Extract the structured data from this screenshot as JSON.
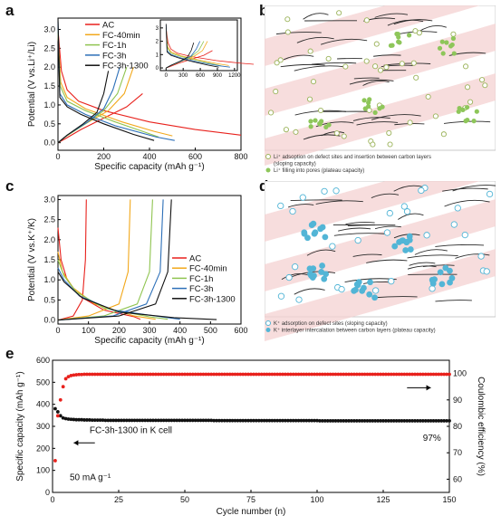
{
  "panels": {
    "a": {
      "label": "a"
    },
    "b": {
      "label": "b"
    },
    "c": {
      "label": "c"
    },
    "d": {
      "label": "d"
    },
    "e": {
      "label": "e"
    }
  },
  "colors": {
    "AC": "#e8211c",
    "FC-40min": "#f2a81b",
    "FC-1h": "#8fc450",
    "FC-3h": "#2c6fb8",
    "FC-3h-1300": "#111111",
    "lithium_particle": "#8ec65a",
    "potassium_particle": "#52b5d6",
    "band": "#f4d2d2"
  },
  "diagram_b": {
    "legend": [
      {
        "icon": "open-circle-icon",
        "text": "Li⁺ adsoption on defect sites and insertion between carbon layers"
      },
      {
        "icon": "",
        "text": "(sloping capacity)"
      },
      {
        "icon": "filled-circle-icon",
        "text": "Li⁺ filling into pores (plateau capacity)"
      }
    ]
  },
  "diagram_d": {
    "legend": [
      {
        "icon": "open-circle-icon",
        "text": "K⁺ adsorption on defect sites (sloping capacity)"
      },
      {
        "icon": "filled-circle-icon",
        "text": "K⁺ interlayer intercalation between carbon layers (plateau capacity)"
      }
    ]
  },
  "chart_data": [
    {
      "id": "a",
      "type": "line",
      "xlabel": "Specific capacity (mAh g⁻¹)",
      "ylabel": "Potential (V vs.Li⁺/Li)",
      "xlim": [
        0,
        800
      ],
      "ylim": [
        -0.2,
        3.3
      ],
      "xticks": [
        0,
        200,
        400,
        600,
        800
      ],
      "yticks": [
        0.0,
        0.5,
        1.0,
        1.5,
        2.0,
        2.5,
        3.0
      ],
      "legend": [
        "AC",
        "FC-40min",
        "FC-1h",
        "FC-3h",
        "FC-3h-1300"
      ],
      "series": [
        {
          "name": "AC",
          "discharge": [
            [
              0,
              3.0
            ],
            [
              15,
              1.9
            ],
            [
              40,
              1.4
            ],
            [
              90,
              1.1
            ],
            [
              200,
              0.85
            ],
            [
              400,
              0.55
            ],
            [
              600,
              0.35
            ],
            [
              800,
              0.2
            ]
          ],
          "charge": [
            [
              0,
              0.0
            ],
            [
              30,
              0.1
            ],
            [
              100,
              0.35
            ],
            [
              200,
              0.65
            ],
            [
              300,
              0.95
            ],
            [
              370,
              1.3
            ]
          ]
        },
        {
          "name": "FC-40min",
          "discharge": [
            [
              0,
              2.9
            ],
            [
              12,
              1.6
            ],
            [
              40,
              1.2
            ],
            [
              120,
              0.9
            ],
            [
              280,
              0.55
            ],
            [
              420,
              0.3
            ],
            [
              500,
              0.18
            ]
          ],
          "charge": [
            [
              0,
              0.0
            ],
            [
              30,
              0.15
            ],
            [
              120,
              0.5
            ],
            [
              220,
              0.85
            ],
            [
              290,
              1.3
            ],
            [
              330,
              2.0
            ]
          ]
        },
        {
          "name": "FC-1h",
          "discharge": [
            [
              0,
              3.0
            ],
            [
              10,
              1.5
            ],
            [
              40,
              1.1
            ],
            [
              120,
              0.85
            ],
            [
              250,
              0.55
            ],
            [
              380,
              0.28
            ],
            [
              440,
              0.15
            ]
          ],
          "charge": [
            [
              0,
              0.0
            ],
            [
              30,
              0.15
            ],
            [
              120,
              0.5
            ],
            [
              200,
              0.85
            ],
            [
              260,
              1.3
            ],
            [
              300,
              2.0
            ]
          ]
        },
        {
          "name": "FC-3h",
          "discharge": [
            [
              0,
              3.2
            ],
            [
              8,
              1.3
            ],
            [
              40,
              1.0
            ],
            [
              120,
              0.75
            ],
            [
              250,
              0.45
            ],
            [
              430,
              0.15
            ],
            [
              510,
              0.06
            ]
          ],
          "charge": [
            [
              0,
              0.0
            ],
            [
              40,
              0.2
            ],
            [
              130,
              0.55
            ],
            [
              200,
              0.9
            ],
            [
              240,
              1.4
            ],
            [
              270,
              2.0
            ]
          ]
        },
        {
          "name": "FC-3h-1300",
          "discharge": [
            [
              0,
              3.3
            ],
            [
              8,
              1.2
            ],
            [
              40,
              0.95
            ],
            [
              100,
              0.75
            ],
            [
              200,
              0.5
            ],
            [
              330,
              0.22
            ],
            [
              420,
              0.06
            ]
          ],
          "charge": [
            [
              0,
              0.0
            ],
            [
              40,
              0.2
            ],
            [
              110,
              0.5
            ],
            [
              170,
              0.8
            ],
            [
              200,
              1.3
            ],
            [
              220,
              1.9
            ]
          ]
        }
      ],
      "inset": {
        "xticks": [
          0,
          300,
          600,
          900,
          1200
        ],
        "yticks": [
          0,
          1,
          2,
          3
        ],
        "xlim": [
          -100,
          1250
        ],
        "ylim": [
          -0.2,
          3.6
        ]
      }
    },
    {
      "id": "c",
      "type": "line",
      "xlabel": "Specific capacity (mAh g⁻¹)",
      "ylabel": "Potential (V vs.K⁺/K)",
      "xlim": [
        0,
        600
      ],
      "ylim": [
        -0.1,
        3.1
      ],
      "xticks": [
        0,
        100,
        200,
        300,
        400,
        500,
        600
      ],
      "yticks": [
        0.0,
        0.5,
        1.0,
        1.5,
        2.0,
        2.5,
        3.0
      ],
      "legend": [
        "AC",
        "FC-40min",
        "FC-1h",
        "FC-3h",
        "FC-3h-1300"
      ],
      "series": [
        {
          "name": "AC",
          "discharge": [
            [
              0,
              2.3
            ],
            [
              10,
              1.5
            ],
            [
              30,
              1.0
            ],
            [
              70,
              0.6
            ],
            [
              150,
              0.25
            ],
            [
              250,
              0.08
            ],
            [
              270,
              0.02
            ]
          ],
          "charge": [
            [
              0,
              0.0
            ],
            [
              50,
              0.1
            ],
            [
              80,
              0.5
            ],
            [
              90,
              1.5
            ],
            [
              93,
              3.0
            ]
          ]
        },
        {
          "name": "FC-40min",
          "discharge": [
            [
              0,
              1.7
            ],
            [
              15,
              1.2
            ],
            [
              50,
              0.8
            ],
            [
              120,
              0.4
            ],
            [
              250,
              0.1
            ],
            [
              320,
              0.02
            ]
          ],
          "charge": [
            [
              0,
              0.0
            ],
            [
              100,
              0.1
            ],
            [
              200,
              0.4
            ],
            [
              230,
              1.2
            ],
            [
              237,
              3.0
            ]
          ]
        },
        {
          "name": "FC-1h",
          "discharge": [
            [
              0,
              1.5
            ],
            [
              20,
              1.1
            ],
            [
              60,
              0.7
            ],
            [
              150,
              0.3
            ],
            [
              300,
              0.08
            ],
            [
              360,
              0.02
            ]
          ],
          "charge": [
            [
              0,
              0.0
            ],
            [
              150,
              0.1
            ],
            [
              260,
              0.4
            ],
            [
              300,
              1.2
            ],
            [
              310,
              3.0
            ]
          ]
        },
        {
          "name": "FC-3h",
          "discharge": [
            [
              0,
              1.3
            ],
            [
              20,
              1.0
            ],
            [
              70,
              0.6
            ],
            [
              180,
              0.25
            ],
            [
              350,
              0.07
            ],
            [
              400,
              0.02
            ]
          ],
          "charge": [
            [
              0,
              0.0
            ],
            [
              180,
              0.1
            ],
            [
              290,
              0.4
            ],
            [
              335,
              1.2
            ],
            [
              345,
              3.0
            ]
          ]
        },
        {
          "name": "FC-3h-1300",
          "discharge": [
            [
              0,
              1.2
            ],
            [
              20,
              0.95
            ],
            [
              80,
              0.55
            ],
            [
              200,
              0.2
            ],
            [
              380,
              0.06
            ],
            [
              520,
              0.01
            ]
          ],
          "charge": [
            [
              0,
              0.0
            ],
            [
              200,
              0.1
            ],
            [
              320,
              0.4
            ],
            [
              360,
              1.2
            ],
            [
              372,
              3.0
            ]
          ]
        }
      ]
    },
    {
      "id": "e",
      "type": "scatter",
      "xlabel": "Cycle number (n)",
      "ylabel": "Specific capacity (mAh g⁻¹)",
      "y2label": "Coulombic efficiency (%)",
      "xlim": [
        0,
        150
      ],
      "ylim": [
        0,
        600
      ],
      "y2lim": [
        55,
        105
      ],
      "xticks": [
        0,
        25,
        50,
        75,
        100,
        125,
        150
      ],
      "yticks": [
        0,
        100,
        200,
        300,
        400,
        500,
        600
      ],
      "y2ticks": [
        60,
        70,
        80,
        90,
        100
      ],
      "annotations": [
        "FC-3h-1300 in K cell",
        "50 mA g⁻¹",
        "97%"
      ],
      "series": [
        {
          "name": "Specific capacity",
          "color": "#111111",
          "values": [
            380,
            366,
            348,
            338,
            335,
            333,
            332,
            331,
            330,
            330,
            330,
            329,
            329,
            329,
            328,
            328,
            328,
            328,
            328,
            327,
            327,
            327,
            327,
            327,
            327,
            327,
            327,
            327,
            327,
            327,
            327,
            327,
            327,
            327,
            327,
            327,
            327,
            327,
            327,
            327,
            327,
            327,
            327,
            327,
            327,
            327,
            327,
            327,
            327,
            327,
            327,
            327,
            327,
            327,
            327,
            327,
            327,
            327,
            327,
            327,
            326,
            326,
            326,
            326,
            326,
            326,
            326,
            326,
            326,
            326,
            326,
            326,
            326,
            326,
            326,
            326,
            326,
            326,
            326,
            326,
            326,
            326,
            326,
            326,
            326,
            326,
            326,
            326,
            326,
            326,
            326,
            326,
            326,
            326,
            326,
            326,
            326,
            326,
            326,
            326,
            325,
            325,
            325,
            325,
            325,
            325,
            325,
            325,
            325,
            325,
            325,
            325,
            325,
            325,
            325,
            325,
            325,
            325,
            325,
            325,
            325,
            325,
            325,
            325,
            325,
            325,
            325,
            325,
            325,
            325,
            325,
            325,
            325,
            325,
            325,
            325,
            325,
            325,
            325,
            325,
            325,
            325,
            325,
            325,
            325,
            325,
            325,
            325,
            325,
            325
          ]
        },
        {
          "name": "Coulombic efficiency",
          "color": "#e8211c",
          "values": [
            67,
            84,
            90,
            95,
            98,
            98.8,
            99.2,
            99.4,
            99.5,
            99.6,
            99.6,
            99.7,
            99.7,
            99.7,
            99.7,
            99.7,
            99.7,
            99.7,
            99.7,
            99.7,
            99.7,
            99.7,
            99.7,
            99.7,
            99.7,
            99.7,
            99.7,
            99.7,
            99.7,
            99.7,
            99.7,
            99.7,
            99.7,
            99.7,
            99.7,
            99.7,
            99.7,
            99.7,
            99.7,
            99.7,
            99.7,
            99.7,
            99.7,
            99.7,
            99.7,
            99.7,
            99.7,
            99.7,
            99.7,
            99.7,
            99.7,
            99.7,
            99.7,
            99.7,
            99.7,
            99.7,
            99.7,
            99.7,
            99.7,
            99.7,
            99.7,
            99.7,
            99.7,
            99.7,
            99.7,
            99.7,
            99.7,
            99.7,
            99.7,
            99.7,
            99.7,
            99.7,
            99.7,
            99.7,
            99.7,
            99.7,
            99.7,
            99.7,
            99.7,
            99.7,
            99.7,
            99.7,
            99.7,
            99.7,
            99.7,
            99.7,
            99.7,
            99.7,
            99.7,
            99.7,
            99.7,
            99.7,
            99.7,
            99.7,
            99.7,
            99.7,
            99.7,
            99.7,
            99.7,
            99.7,
            99.7,
            99.7,
            99.7,
            99.7,
            99.7,
            99.7,
            99.7,
            99.7,
            99.7,
            99.7,
            99.7,
            99.7,
            99.7,
            99.7,
            99.7,
            99.7,
            99.7,
            99.7,
            99.7,
            99.7,
            99.7,
            99.7,
            99.7,
            99.7,
            99.7,
            99.7,
            99.7,
            99.7,
            99.7,
            99.7,
            99.7,
            99.7,
            99.7,
            99.7,
            99.7,
            99.7,
            99.7,
            99.7,
            99.7,
            99.7,
            99.7,
            99.7,
            99.7,
            99.7,
            99.7,
            99.7,
            99.7,
            99.7,
            99.7,
            99.7
          ]
        }
      ]
    }
  ]
}
